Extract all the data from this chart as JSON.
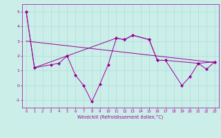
{
  "series1_x": [
    0,
    1,
    5,
    11,
    12,
    13,
    15,
    16,
    17,
    21,
    23
  ],
  "series1_y": [
    5,
    1.2,
    2.0,
    3.2,
    3.1,
    3.4,
    3.1,
    1.7,
    1.7,
    1.5,
    1.6
  ],
  "series2_x": [
    0,
    1,
    3,
    4,
    5,
    6,
    7,
    8,
    9,
    10,
    11,
    12,
    13,
    15,
    16,
    17,
    19,
    20,
    21,
    22,
    23
  ],
  "series2_y": [
    5,
    1.2,
    1.4,
    1.5,
    2.0,
    0.7,
    0.0,
    -1.1,
    0.1,
    1.4,
    3.2,
    3.1,
    3.4,
    3.1,
    1.7,
    1.7,
    0.0,
    0.6,
    1.5,
    1.1,
    1.6
  ],
  "trend_x": [
    0,
    23
  ],
  "trend_y": [
    3.0,
    1.55
  ],
  "bg_color": "#cceee8",
  "line_color": "#990099",
  "grid_color": "#aadddd",
  "xlabel": "Windchill (Refroidissement éolien,°C)",
  "ylim": [
    -1.5,
    5.5
  ],
  "xlim": [
    -0.5,
    23.5
  ],
  "yticks": [
    -1,
    0,
    1,
    2,
    3,
    4,
    5
  ],
  "xticks": [
    0,
    1,
    2,
    3,
    4,
    5,
    6,
    7,
    8,
    9,
    10,
    11,
    12,
    13,
    14,
    15,
    16,
    17,
    18,
    19,
    20,
    21,
    22,
    23
  ]
}
